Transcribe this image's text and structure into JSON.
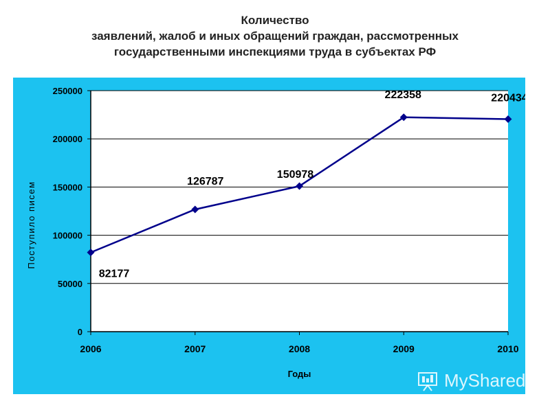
{
  "title_lines": [
    "Количество",
    "заявлений, жалоб и иных обращений граждан, рассмотренных",
    "государственными инспекциями труда в субъектах РФ"
  ],
  "watermark": "MyShared",
  "colors": {
    "background": "#1cc2f0",
    "plot_area": "#ffffff",
    "line": "#00008b",
    "grid": "#000000"
  },
  "chart_data": {
    "type": "line",
    "title": "Количество заявлений, жалоб и иных обращений граждан, рассмотренных государственными инспекциями труда в субъектах РФ",
    "xlabel": "Годы",
    "ylabel": "Поступило писем",
    "categories": [
      "2006",
      "2007",
      "2008",
      "2009",
      "2010"
    ],
    "series": [
      {
        "values": [
          82177,
          126787,
          150978,
          222358,
          220434
        ]
      }
    ],
    "data_labels": [
      "82177",
      "126787",
      "150978",
      "222358",
      "220434"
    ],
    "y_ticks": [
      "0",
      "50000",
      "100000",
      "150000",
      "200000",
      "250000"
    ],
    "ylim": [
      0,
      250000
    ],
    "grid": true,
    "legend": "none",
    "marker": "diamond"
  }
}
